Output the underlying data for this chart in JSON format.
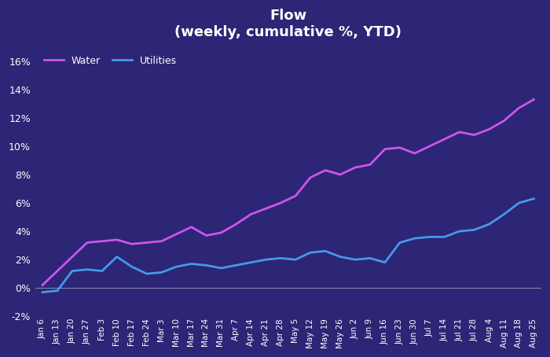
{
  "title_line1": "Flow",
  "title_line2": "(weekly, cumulative %, YTD)",
  "background_color": "#2d2575",
  "text_color": "#ffffff",
  "x_labels": [
    "Jan 6",
    "Jan 13",
    "Jan 20",
    "Jan 27",
    "Feb 3",
    "Feb 10",
    "Feb 17",
    "Feb 24",
    "Mar 3",
    "Mar 10",
    "Mar 17",
    "Mar 24",
    "Mar 31",
    "Apr 7",
    "Apr 14",
    "Apr 21",
    "Apr 28",
    "May 5",
    "May 12",
    "May 19",
    "May 26",
    "Jun 2",
    "Jun 9",
    "Jun 16",
    "Jun 23",
    "Jun 30",
    "Jul 7",
    "Jul 14",
    "Jul 21",
    "Jul 28",
    "Aug 4",
    "Aug 11",
    "Aug 18",
    "Aug 25"
  ],
  "water_values": [
    0.2,
    1.2,
    2.2,
    3.2,
    3.3,
    3.4,
    3.1,
    3.2,
    3.3,
    3.8,
    4.3,
    3.7,
    3.9,
    4.5,
    5.2,
    5.6,
    6.0,
    6.5,
    7.8,
    8.3,
    8.0,
    8.5,
    8.7,
    9.8,
    9.9,
    9.5,
    10.0,
    10.5,
    11.0,
    10.8,
    11.2,
    11.8,
    12.7,
    13.3
  ],
  "utilities_values": [
    -0.3,
    -0.2,
    1.2,
    1.3,
    1.2,
    2.2,
    1.5,
    1.0,
    1.1,
    1.5,
    1.7,
    1.6,
    1.4,
    1.6,
    1.8,
    2.0,
    2.1,
    2.0,
    2.5,
    2.6,
    2.2,
    2.0,
    2.1,
    1.8,
    3.2,
    3.5,
    3.6,
    3.6,
    4.0,
    4.1,
    4.5,
    5.2,
    6.0,
    6.3
  ],
  "water_color": "#cc55ee",
  "utilities_color": "#4499ee",
  "ylim": [
    -2,
    17
  ],
  "yticks": [
    -2,
    0,
    2,
    4,
    6,
    8,
    10,
    12,
    14,
    16
  ],
  "legend_water": "Water",
  "legend_utilities": "Utilities",
  "line_width": 2.0,
  "zero_line_color": "#8888aa",
  "figsize": [
    7.0,
    4.54
  ],
  "dpi": 100
}
